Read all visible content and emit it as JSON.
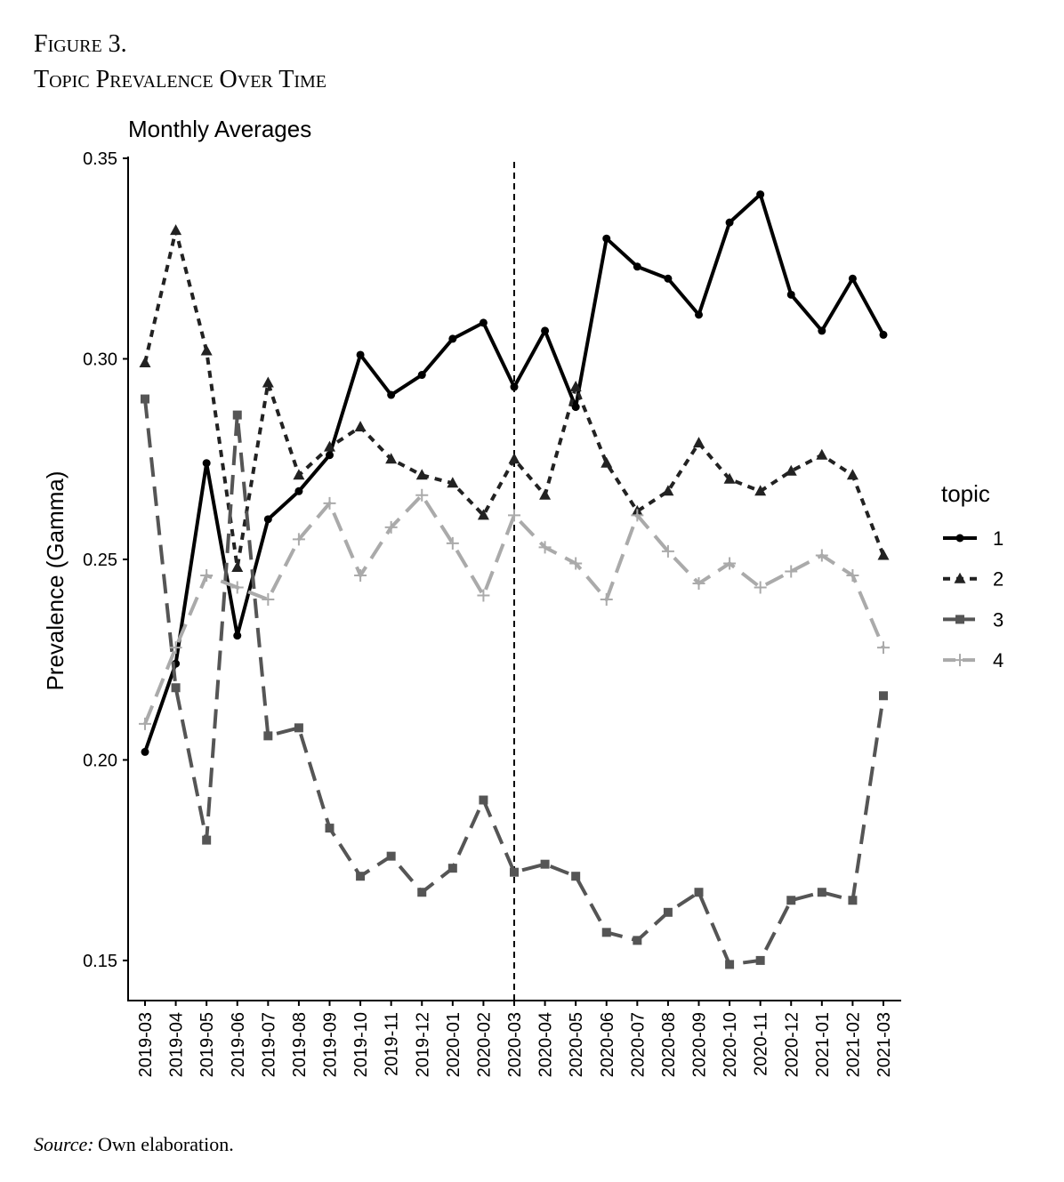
{
  "chart_data": {
    "type": "line",
    "figure_label": "Figure 3.",
    "title": "Topic Prevalence Over Time",
    "subtitle": "Monthly Averages",
    "y_label": "Prevalence (Gamma)",
    "legend_title": "topic",
    "legend_position": "right",
    "source_label": "Source:",
    "source_text": "Own elaboration.",
    "vline": "2020-03",
    "categories": [
      "2019-03",
      "2019-04",
      "2019-05",
      "2019-06",
      "2019-07",
      "2019-08",
      "2019-09",
      "2019-10",
      "2019-11",
      "2019-12",
      "2020-01",
      "2020-02",
      "2020-03",
      "2020-04",
      "2020-05",
      "2020-06",
      "2020-07",
      "2020-08",
      "2020-09",
      "2020-10",
      "2020-11",
      "2020-12",
      "2021-01",
      "2021-02",
      "2021-03"
    ],
    "ylim": [
      0.14,
      0.35
    ],
    "yticks": [
      0.15,
      {
        "value": 0.2,
        "label": "0.20"
      },
      0.25,
      {
        "value": 0.3,
        "label": "0.30"
      },
      0.35
    ],
    "series": [
      {
        "name": "1",
        "color": "#000000",
        "linestyle": "solid",
        "marker": "circle",
        "values": [
          0.202,
          0.224,
          0.274,
          0.231,
          0.26,
          0.267,
          0.276,
          0.301,
          0.291,
          0.296,
          0.305,
          0.309,
          0.293,
          0.307,
          0.288,
          0.33,
          0.323,
          0.32,
          0.311,
          0.334,
          0.341,
          0.316,
          0.307,
          0.32,
          0.306
        ]
      },
      {
        "name": "2",
        "color": "#222222",
        "linestyle": "dotted",
        "marker": "triangle",
        "values": [
          0.299,
          0.332,
          0.302,
          0.248,
          0.294,
          0.271,
          0.278,
          0.283,
          0.275,
          0.271,
          0.269,
          0.261,
          0.275,
          0.266,
          0.293,
          0.274,
          0.262,
          0.267,
          0.279,
          0.27,
          0.267,
          0.272,
          0.276,
          0.271,
          0.251
        ]
      },
      {
        "name": "3",
        "color": "#555555",
        "linestyle": "dashed",
        "marker": "square",
        "values": [
          0.29,
          0.218,
          0.18,
          0.286,
          0.206,
          0.208,
          0.183,
          0.171,
          0.176,
          0.167,
          0.173,
          0.19,
          0.172,
          0.174,
          0.171,
          0.157,
          0.155,
          0.162,
          0.167,
          0.149,
          0.15,
          0.165,
          0.167,
          0.165,
          0.216
        ]
      },
      {
        "name": "4",
        "color": "#aaaaaa",
        "linestyle": "dashed",
        "marker": "plus",
        "values": [
          0.209,
          0.228,
          0.246,
          0.243,
          0.24,
          0.255,
          0.264,
          0.246,
          0.258,
          0.266,
          0.254,
          0.241,
          0.261,
          0.253,
          0.249,
          0.24,
          0.261,
          0.252,
          0.244,
          0.249,
          0.243,
          0.247,
          0.251,
          0.246,
          0.228
        ]
      }
    ]
  }
}
